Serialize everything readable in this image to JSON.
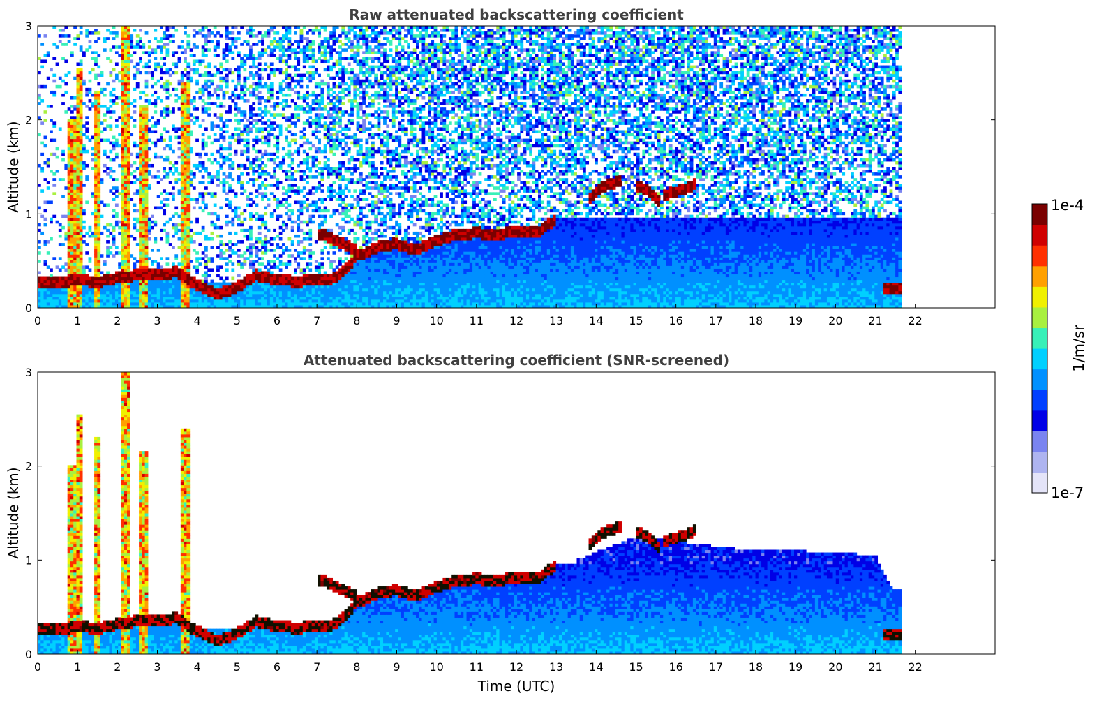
{
  "chart_data": [
    {
      "type": "heatmap",
      "title": "Raw attenuated backscattering coefficient",
      "xlabel": "",
      "ylabel": "Altitude (km)",
      "xlim": [
        0,
        24
      ],
      "ylim": [
        0,
        3
      ],
      "x_ticks": [
        "0",
        "1",
        "2",
        "3",
        "4",
        "5",
        "6",
        "7",
        "8",
        "9",
        "10",
        "11",
        "12",
        "13",
        "14",
        "15",
        "16",
        "17",
        "18",
        "19",
        "20",
        "21",
        "22"
      ],
      "y_ticks": [
        "0",
        "1",
        "2",
        "3"
      ],
      "data_end_hour": 21.65,
      "noise_above_signal": true,
      "layers": [
        {
          "label": "boundary layer top",
          "x": [
            0,
            0.5,
            1,
            1.5,
            2,
            2.5,
            3,
            3.5,
            4,
            4.5,
            5,
            5.5,
            6,
            6.5,
            7,
            7.5,
            8,
            8.5,
            9,
            9.5,
            10,
            10.5,
            11,
            11.5,
            12,
            12.5,
            13
          ],
          "y": [
            0.28,
            0.26,
            0.3,
            0.27,
            0.32,
            0.35,
            0.36,
            0.38,
            0.24,
            0.15,
            0.22,
            0.35,
            0.3,
            0.28,
            0.3,
            0.32,
            0.55,
            0.65,
            0.68,
            0.62,
            0.72,
            0.78,
            0.8,
            0.78,
            0.82,
            0.8,
            0.95
          ],
          "value": "1e-4"
        },
        {
          "label": "residual layer",
          "x": [
            7,
            7.5,
            8
          ],
          "y": [
            0.8,
            0.72,
            0.62
          ],
          "value": "1e-4"
        },
        {
          "label": "cloud layer",
          "x": [
            13.8,
            14.2,
            14.6
          ],
          "y": [
            1.15,
            1.3,
            1.35
          ],
          "value": "1e-4"
        },
        {
          "label": "cloud layer",
          "x": [
            15,
            15.3,
            15.6
          ],
          "y": [
            1.3,
            1.25,
            1.12
          ],
          "value": "1e-4"
        },
        {
          "label": "cloud layer",
          "x": [
            15.7,
            16.1,
            16.5
          ],
          "y": [
            1.2,
            1.25,
            1.32
          ],
          "value": "1e-4"
        },
        {
          "label": "surface layer",
          "x": [
            21.2,
            21.65
          ],
          "y": [
            0.22,
            0.22
          ],
          "value": "1e-4"
        }
      ],
      "plumes": [
        {
          "x": 0.85,
          "y_top": 2.0
        },
        {
          "x": 1.05,
          "y_top": 2.55
        },
        {
          "x": 1.5,
          "y_top": 2.3
        },
        {
          "x": 2.2,
          "y_top": 3.0
        },
        {
          "x": 2.65,
          "y_top": 2.15
        },
        {
          "x": 3.7,
          "y_top": 2.4
        }
      ]
    },
    {
      "type": "heatmap",
      "title": "Attenuated backscattering coefficient (SNR-screened)",
      "xlabel": "Time (UTC)",
      "ylabel": "Altitude (km)",
      "xlim": [
        0,
        24
      ],
      "ylim": [
        0,
        3
      ],
      "x_ticks": [
        "0",
        "1",
        "2",
        "3",
        "4",
        "5",
        "6",
        "7",
        "8",
        "9",
        "10",
        "11",
        "12",
        "13",
        "14",
        "15",
        "16",
        "17",
        "18",
        "19",
        "20",
        "21",
        "22"
      ],
      "y_ticks": [
        "0",
        "1",
        "2",
        "3"
      ],
      "data_end_hour": 21.65,
      "noise_above_signal": false,
      "screened_aerosol_top": {
        "x": [
          13.5,
          15,
          17,
          18,
          19,
          20,
          21,
          21.4
        ],
        "y": [
          1.0,
          1.25,
          1.15,
          1.1,
          1.1,
          1.08,
          1.05,
          0.7
        ]
      }
    }
  ],
  "colorbar": {
    "label": "1/m/sr",
    "max_label": "1e-4",
    "min_label": "1e-7",
    "scale": "log",
    "colors": [
      "#e4e4f8",
      "#aeb4f0",
      "#7a84f0",
      "#0000e6",
      "#0040ff",
      "#0090ff",
      "#00d0ff",
      "#38f0b8",
      "#a8f040",
      "#f0f000",
      "#ffa000",
      "#ff3000",
      "#d00000",
      "#7a0000"
    ]
  }
}
